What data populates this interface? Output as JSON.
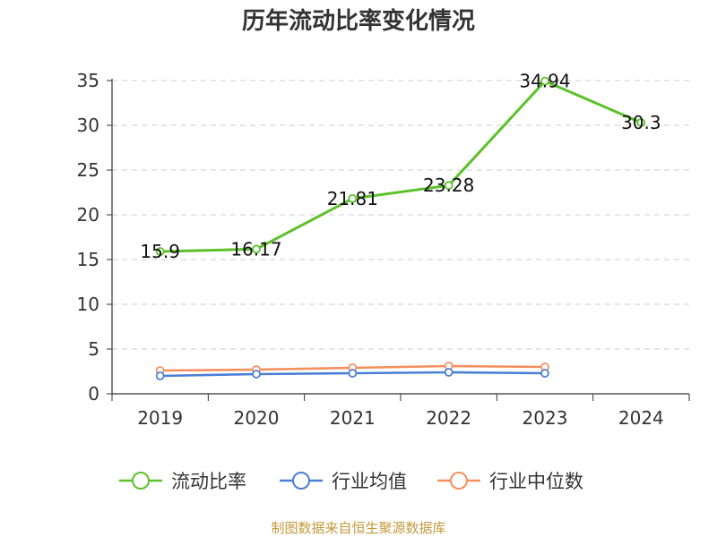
{
  "chart_data": {
    "type": "line",
    "title": "历年流动比率变化情况",
    "categories": [
      "2019",
      "2020",
      "2021",
      "2022",
      "2023",
      "2024"
    ],
    "yticks": [
      "0",
      "5",
      "10",
      "15",
      "20",
      "25",
      "30",
      "35"
    ],
    "ylim": [
      0,
      35
    ],
    "grid": true,
    "legend_position": "bottom",
    "series": [
      {
        "name": "流动比率",
        "color": "#5cc12a",
        "values": [
          15.9,
          16.17,
          21.81,
          23.28,
          34.94,
          30.3
        ],
        "labels": [
          "15.9",
          "16.17",
          "21.81",
          "23.28",
          "34.94",
          "30.3"
        ]
      },
      {
        "name": "行业均值",
        "color": "#4a7fd6",
        "values": [
          2.0,
          2.2,
          2.3,
          2.4,
          2.3,
          null
        ]
      },
      {
        "name": "行业中位数",
        "color": "#f5905e",
        "values": [
          2.6,
          2.7,
          2.9,
          3.1,
          3.0,
          null
        ]
      }
    ]
  },
  "source": "制图数据来自恒生聚源数据库"
}
